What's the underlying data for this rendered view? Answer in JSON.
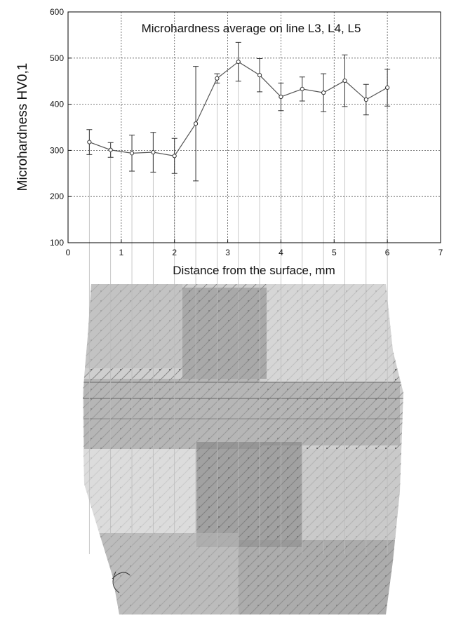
{
  "chart_data": {
    "type": "line",
    "title": "Microhardness average on line L3, L4, L5",
    "xlabel": "Distance from the surface, mm",
    "ylabel": "Microhardness HV0,1",
    "x": [
      0.4,
      0.8,
      1.2,
      1.6,
      2.0,
      2.4,
      2.8,
      3.2,
      3.6,
      4.0,
      4.4,
      4.8,
      5.2,
      5.6,
      6.0
    ],
    "values": [
      318,
      301,
      294,
      296,
      288,
      358,
      456,
      492,
      463,
      416,
      433,
      425,
      451,
      410,
      436
    ],
    "errors": [
      27,
      16,
      39,
      43,
      38,
      124,
      10,
      42,
      36,
      30,
      26,
      41,
      56,
      33,
      40
    ],
    "color": "#555555",
    "xlim": [
      0,
      7
    ],
    "xticks": [
      0,
      1,
      2,
      3,
      4,
      5,
      6,
      7
    ],
    "ylim": [
      100,
      600
    ],
    "yticks": [
      100,
      200,
      300,
      400,
      500,
      600
    ],
    "grid": true
  }
}
